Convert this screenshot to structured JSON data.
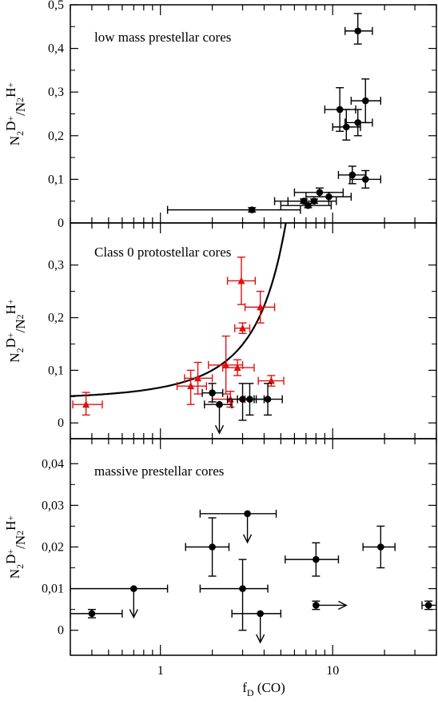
{
  "chart_data": {
    "type": "scatter",
    "xlabel": "f_D (CO)",
    "xscale": "log",
    "xlim": [
      0.3,
      40
    ],
    "xticks": [
      {
        "value": 1,
        "label": "1"
      },
      {
        "value": 10,
        "label": "10"
      }
    ],
    "colors": {
      "black": "#000000",
      "red": "#e01010"
    },
    "panels": [
      {
        "title": "low mass prestellar cores",
        "ylabel": "N2D+/N2H+",
        "ylim": [
          0,
          0.5
        ],
        "yticks": [
          {
            "value": 0,
            "label": "0"
          },
          {
            "value": 0.1,
            "label": "0,1"
          },
          {
            "value": 0.2,
            "label": "0,2"
          },
          {
            "value": 0.3,
            "label": "0,3"
          },
          {
            "value": 0.4,
            "label": "0,4"
          },
          {
            "value": 0.5,
            "label": "0,5"
          }
        ],
        "series": [
          {
            "marker": "circle",
            "color": "#000000",
            "points": [
              {
                "x": 14.0,
                "y": 0.44,
                "xlo": 11.8,
                "xhi": 17.0,
                "ylo": 0.41,
                "yhi": 0.48
              },
              {
                "x": 15.5,
                "y": 0.28,
                "xlo": 12.8,
                "xhi": 19.0,
                "ylo": 0.23,
                "yhi": 0.33
              },
              {
                "x": 11.0,
                "y": 0.26,
                "xlo": 9.0,
                "xhi": 13.6,
                "ylo": 0.21,
                "yhi": 0.31
              },
              {
                "x": 14.0,
                "y": 0.23,
                "xlo": 11.8,
                "xhi": 17.0,
                "ylo": 0.2,
                "yhi": 0.26
              },
              {
                "x": 12.0,
                "y": 0.22,
                "xlo": 10.0,
                "xhi": 14.5,
                "ylo": 0.19,
                "yhi": 0.26
              },
              {
                "x": 13.0,
                "y": 0.11,
                "xlo": 10.8,
                "xhi": 15.6,
                "ylo": 0.09,
                "yhi": 0.13
              },
              {
                "x": 15.5,
                "y": 0.1,
                "xlo": 12.6,
                "xhi": 19.0,
                "ylo": 0.08,
                "yhi": 0.12
              },
              {
                "x": 8.4,
                "y": 0.07,
                "xlo": 6.0,
                "xhi": 11.5,
                "ylo": 0.06,
                "yhi": 0.08
              },
              {
                "x": 9.5,
                "y": 0.06,
                "xlo": 7.0,
                "xhi": 12.8,
                "ylo": 0.05,
                "yhi": 0.07
              },
              {
                "x": 6.8,
                "y": 0.05,
                "xlo": 4.6,
                "xhi": 9.5,
                "ylo": 0.045,
                "yhi": 0.055
              },
              {
                "x": 7.8,
                "y": 0.05,
                "xlo": 5.5,
                "xhi": 10.5,
                "ylo": 0.045,
                "yhi": 0.055
              },
              {
                "x": 7.2,
                "y": 0.04,
                "xlo": 5.0,
                "xhi": 9.8,
                "ylo": 0.035,
                "yhi": 0.045
              },
              {
                "x": 3.4,
                "y": 0.03,
                "xlo": 1.1,
                "xhi": 6.5,
                "ylo": 0.025,
                "yhi": 0.035
              }
            ]
          }
        ]
      },
      {
        "title": "Class 0 protostellar cores",
        "ylabel": "N2D+/N2H+",
        "ylim": [
          -0.03,
          0.38
        ],
        "yticks": [
          {
            "value": 0,
            "label": "0"
          },
          {
            "value": 0.1,
            "label": "0,1"
          },
          {
            "value": 0.2,
            "label": "0,2"
          },
          {
            "value": 0.3,
            "label": "0,3"
          }
        ],
        "curve": {
          "a": 0.0452,
          "b": 0.398,
          "color": "#000000"
        },
        "series": [
          {
            "marker": "triangle",
            "color": "#e01010",
            "points": [
              {
                "x": 0.37,
                "y": 0.035,
                "xlo": 0.31,
                "xhi": 0.46,
                "ylo": 0.015,
                "yhi": 0.058
              },
              {
                "x": 1.5,
                "y": 0.07,
                "xlo": 1.25,
                "xhi": 1.85,
                "ylo": 0.035,
                "yhi": 0.1
              },
              {
                "x": 1.65,
                "y": 0.085,
                "xlo": 1.38,
                "xhi": 2.0,
                "ylo": 0.055,
                "yhi": 0.115
              },
              {
                "x": 2.4,
                "y": 0.11,
                "xlo": 1.9,
                "xhi": 3.0,
                "ylo": 0.055,
                "yhi": 0.165
              },
              {
                "x": 2.8,
                "y": 0.105,
                "xlo": 2.3,
                "xhi": 3.5,
                "ylo": 0.09,
                "yhi": 0.12
              },
              {
                "x": 2.55,
                "y": 0.045,
                "xlo": 2.0,
                "xhi": 3.1,
                "ylo": 0.03,
                "yhi": 0.06
              },
              {
                "x": 2.95,
                "y": 0.27,
                "xlo": 2.45,
                "xhi": 3.55,
                "ylo": 0.225,
                "yhi": 0.315
              },
              {
                "x": 3.0,
                "y": 0.18,
                "xlo": 2.7,
                "xhi": 3.3,
                "ylo": 0.17,
                "yhi": 0.19
              },
              {
                "x": 3.8,
                "y": 0.22,
                "xlo": 3.1,
                "xhi": 4.6,
                "ylo": 0.19,
                "yhi": 0.25
              },
              {
                "x": 4.4,
                "y": 0.08,
                "xlo": 3.7,
                "xhi": 5.2,
                "ylo": 0.07,
                "yhi": 0.09
              }
            ]
          },
          {
            "marker": "circle",
            "color": "#000000",
            "points": [
              {
                "x": 2.0,
                "y": 0.057,
                "xlo": 1.75,
                "xhi": 2.3,
                "ylo": 0.04,
                "yhi": 0.075
              },
              {
                "x": 2.2,
                "y": 0.035,
                "xlo": 1.8,
                "xhi": 2.6,
                "ylo": 0.035,
                "yhi": 0.035,
                "upper_limit": true
              },
              {
                "x": 3.0,
                "y": 0.045,
                "xlo": 2.45,
                "xhi": 3.6,
                "ylo": 0.005,
                "yhi": 0.075
              },
              {
                "x": 3.3,
                "y": 0.045,
                "xlo": 2.8,
                "xhi": 4.0,
                "ylo": 0.015,
                "yhi": 0.075
              },
              {
                "x": 4.2,
                "y": 0.045,
                "xlo": 3.5,
                "xhi": 5.1,
                "ylo": 0.015,
                "yhi": 0.075
              }
            ]
          }
        ]
      },
      {
        "title": "massive prestellar cores",
        "ylabel": "N2D+/N2H+",
        "ylim": [
          -0.006,
          0.046
        ],
        "yticks": [
          {
            "value": 0,
            "label": "0"
          },
          {
            "value": 0.01,
            "label": "0,01"
          },
          {
            "value": 0.02,
            "label": "0,02"
          },
          {
            "value": 0.03,
            "label": "0,03"
          },
          {
            "value": 0.04,
            "label": "0,04"
          }
        ],
        "series": [
          {
            "marker": "circle",
            "color": "#000000",
            "points": [
              {
                "x": 0.4,
                "y": 0.004,
                "xlo": 0.3,
                "xhi": 0.6,
                "ylo": 0.003,
                "yhi": 0.005
              },
              {
                "x": 0.7,
                "y": 0.01,
                "xlo": 0.3,
                "xhi": 1.1,
                "ylo": 0.01,
                "yhi": 0.01,
                "upper_limit": true
              },
              {
                "x": 2.0,
                "y": 0.02,
                "xlo": 1.4,
                "xhi": 2.5,
                "ylo": 0.013,
                "yhi": 0.027
              },
              {
                "x": 3.0,
                "y": 0.01,
                "xlo": 1.7,
                "xhi": 4.2,
                "ylo": 0.0,
                "yhi": 0.017
              },
              {
                "x": 3.2,
                "y": 0.028,
                "xlo": 1.7,
                "xhi": 4.7,
                "ylo": 0.028,
                "yhi": 0.028,
                "upper_limit": true
              },
              {
                "x": 3.8,
                "y": 0.004,
                "xlo": 2.6,
                "xhi": 5.0,
                "ylo": 0.004,
                "yhi": 0.004,
                "upper_limit": true
              },
              {
                "x": 8.0,
                "y": 0.017,
                "xlo": 5.3,
                "xhi": 10.8,
                "ylo": 0.013,
                "yhi": 0.021
              },
              {
                "x": 8.0,
                "y": 0.006,
                "xlo": 8.0,
                "xhi": 8.0,
                "ylo": 0.005,
                "yhi": 0.007,
                "lower_limit_x": true
              },
              {
                "x": 19.0,
                "y": 0.02,
                "xlo": 15.0,
                "xhi": 23.0,
                "ylo": 0.015,
                "yhi": 0.025
              },
              {
                "x": 36.0,
                "y": 0.006,
                "xlo": 33.0,
                "xhi": 40.0,
                "ylo": 0.005,
                "yhi": 0.007
              }
            ]
          }
        ]
      }
    ]
  }
}
